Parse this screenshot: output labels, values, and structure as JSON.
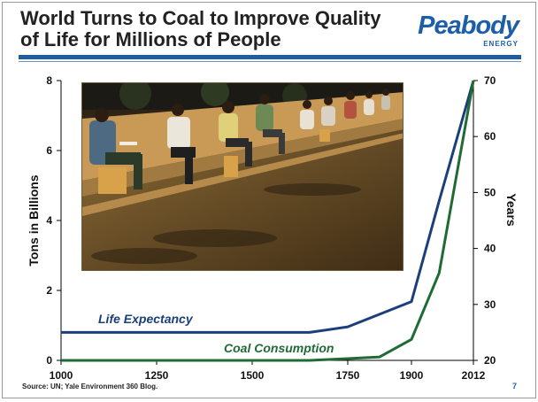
{
  "header": {
    "title_line1": "World Turns to Coal to Improve Quality",
    "title_line2": "of Life for Millions of People"
  },
  "logo": {
    "wordmark": "Peabody",
    "subtitle": "ENERGY"
  },
  "colors": {
    "title_rule": "#1f5da0",
    "life_expectancy": "#1b3f7a",
    "coal_consumption": "#1f6b34",
    "logo": "#1c5ea7"
  },
  "photo": {
    "icon": "photo-students-reading-under-streetlights"
  },
  "chart_data": {
    "type": "line",
    "xlabel": "",
    "x_ticks": [
      "1000",
      "1250",
      "1500",
      "1750",
      "1900",
      "2012"
    ],
    "y_left": {
      "label": "Tons in Billions",
      "ticks": [
        "0",
        "2",
        "4",
        "6",
        "8"
      ],
      "range": [
        0,
        8
      ]
    },
    "y_right": {
      "label": "Years",
      "ticks": [
        "20",
        "30",
        "40",
        "50",
        "60",
        "70"
      ],
      "range": [
        20,
        70
      ]
    },
    "series": [
      {
        "name": "Life Expectancy",
        "axis": "right",
        "points": [
          [
            1000,
            25
          ],
          [
            1650,
            25
          ],
          [
            1750,
            26
          ],
          [
            1800,
            27.5
          ],
          [
            1900,
            30.5
          ],
          [
            1950,
            48.5
          ],
          [
            2012,
            70
          ]
        ]
      },
      {
        "name": "Coal Consumption",
        "axis": "left",
        "points": [
          [
            1000,
            0
          ],
          [
            1650,
            0
          ],
          [
            1750,
            0.05
          ],
          [
            1825,
            0.1
          ],
          [
            1900,
            0.6
          ],
          [
            1950,
            2.5
          ],
          [
            2012,
            8
          ]
        ]
      }
    ]
  },
  "footer": {
    "source": "Source: UN; Yale Environment 360 Blog.",
    "page_number": "7"
  }
}
